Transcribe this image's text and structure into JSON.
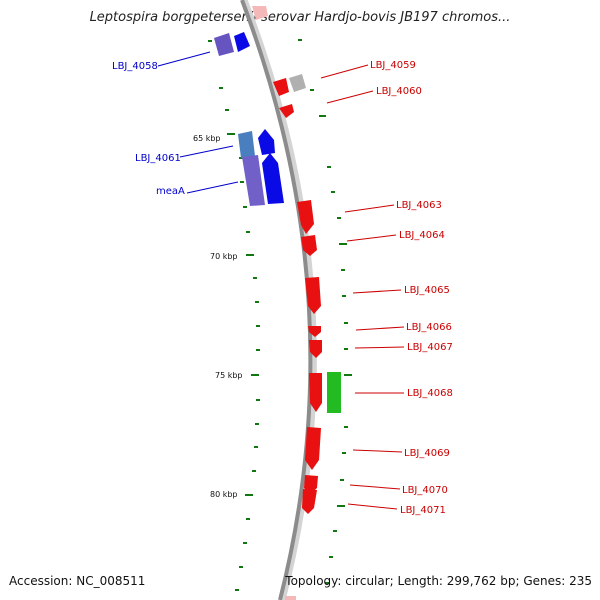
{
  "title": "Leptospira borgpetersenii serovar Hardjo-bovis JB197 chromos...",
  "footer": {
    "accession": "Accession: NC_008511",
    "topology": "Topology: circular; Length: 299,762 bp; Genes: 235"
  },
  "colors": {
    "backbone": "#8c8c8c",
    "forward_label": "#0000cc",
    "reverse_label": "#cc0000",
    "tick": "#117711",
    "gene_red": "#e81010",
    "gene_blue": "#0a0ae6",
    "gene_purple": "#7060c8",
    "gene_steel": "#4a7fbf",
    "gene_green": "#22bb22",
    "gene_grey": "#b0b0b0",
    "gene_pink": "#f4b8b8"
  },
  "scale_ticks": [
    "65 kbp",
    "70 kbp",
    "75 kbp",
    "80 kbp"
  ],
  "gene_labels": {
    "left": [
      "LBJ_4058",
      "LBJ_4061",
      "meaA"
    ],
    "right": [
      "LBJ_4059",
      "LBJ_4060",
      "LBJ_4063",
      "LBJ_4064",
      "LBJ_4065",
      "LBJ_4066",
      "LBJ_4067",
      "LBJ_4068",
      "LBJ_4069",
      "LBJ_4070",
      "LBJ_4071"
    ]
  }
}
